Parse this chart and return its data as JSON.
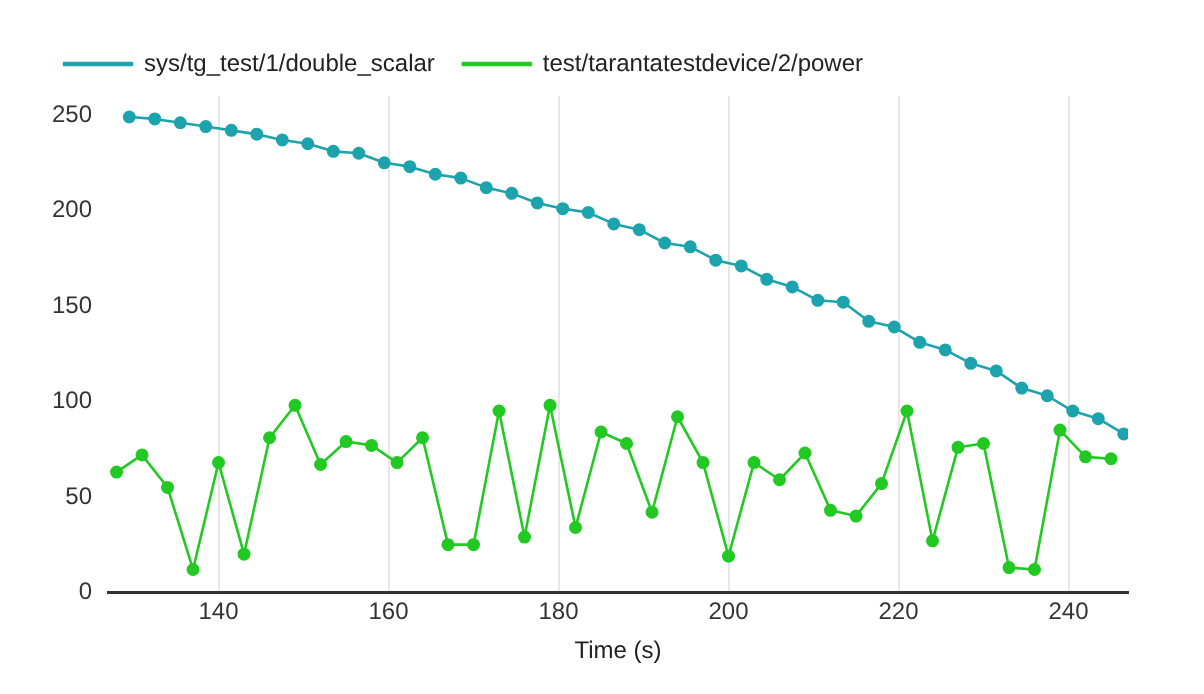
{
  "chart_data": {
    "type": "line",
    "xlabel": "Time (s)",
    "xlim": [
      127,
      247
    ],
    "xticks": [
      140,
      160,
      180,
      200,
      220,
      240
    ],
    "ylim": [
      0,
      260
    ],
    "yticks": [
      0,
      50,
      100,
      150,
      200,
      250
    ],
    "grid": "x",
    "legend": "top",
    "marker": "circle",
    "line_style": "solid",
    "series": [
      {
        "name": "sys/tg_test/1/double_scalar",
        "color": "#1ca3ad",
        "x": [
          129.5,
          132.5,
          135.5,
          138.5,
          141.5,
          144.5,
          147.5,
          150.5,
          153.5,
          156.5,
          159.5,
          162.5,
          165.5,
          168.5,
          171.5,
          174.5,
          177.5,
          180.5,
          183.5,
          186.5,
          189.5,
          192.5,
          195.5,
          198.5,
          201.5,
          204.5,
          207.5,
          210.5,
          213.5,
          216.5,
          219.5,
          222.5,
          225.5,
          228.5,
          231.5,
          234.5,
          237.5,
          240.5,
          243.5,
          246.5
        ],
        "values": [
          249,
          248,
          246,
          244,
          242,
          240,
          237,
          235,
          231,
          230,
          225,
          223,
          219,
          217,
          212,
          209,
          204,
          201,
          199,
          193,
          190,
          183,
          181,
          174,
          171,
          164,
          160,
          153,
          152,
          142,
          139,
          131,
          127,
          120,
          116,
          107,
          103,
          95,
          91,
          83
        ]
      },
      {
        "name": "test/tarantatestdevice/2/power",
        "color": "#22c922",
        "x": [
          128,
          131,
          134,
          137,
          140,
          143,
          146,
          149,
          152,
          155,
          158,
          161,
          164,
          167,
          170,
          173,
          176,
          179,
          182,
          185,
          188,
          191,
          194,
          197,
          200,
          203,
          206,
          209,
          212,
          215,
          218,
          221,
          224,
          227,
          230,
          233,
          236,
          239,
          242,
          245
        ],
        "values": [
          63,
          72,
          55,
          12,
          68,
          20,
          81,
          98,
          67,
          79,
          77,
          68,
          81,
          25,
          25,
          95,
          29,
          98,
          34,
          84,
          78,
          42,
          92,
          68,
          19,
          68,
          59,
          73,
          43,
          40,
          57,
          95,
          27,
          76,
          78,
          13,
          12,
          85,
          71,
          70
        ]
      }
    ]
  }
}
